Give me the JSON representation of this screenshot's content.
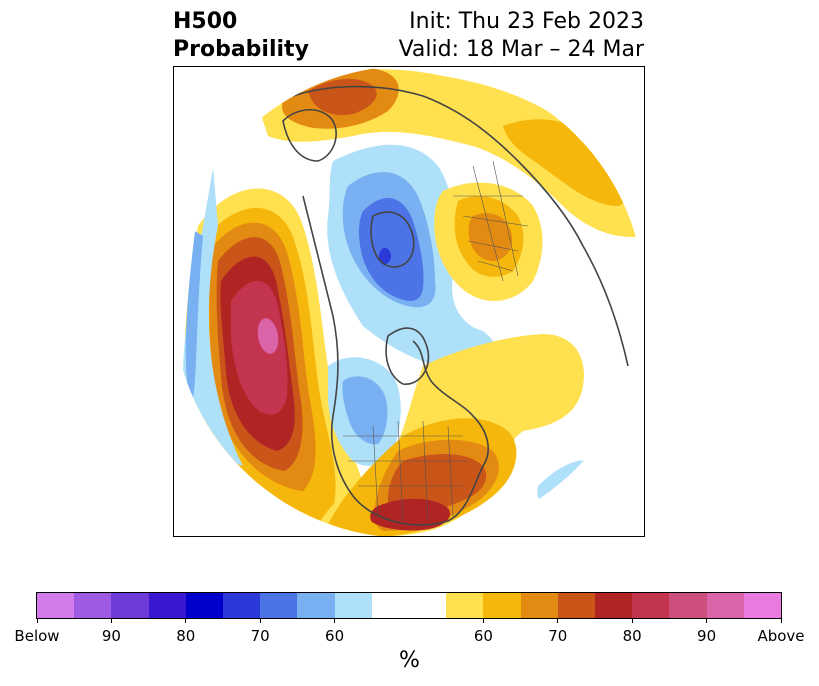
{
  "title": {
    "left_line1": "H500",
    "left_line2": "Probability",
    "right_line1": "Init: Thu 23 Feb 2023",
    "right_line2": "Valid: 18 Mar – 24 Mar"
  },
  "colorbar": {
    "colors": [
      "#d37bea",
      "#9e5ae2",
      "#6e3ad8",
      "#3a17d1",
      "#0000cc",
      "#2a39d8",
      "#4d74e6",
      "#79b0f1",
      "#aee0fa",
      "#ffffff",
      "#ffe04f",
      "#f5b70b",
      "#e38a12",
      "#c95519",
      "#b02424",
      "#c3344e",
      "#cc4f7e",
      "#db64a8",
      "#e87ae0"
    ],
    "labels": [
      "Below",
      "90",
      "80",
      "70",
      "60",
      "60",
      "70",
      "80",
      "90",
      "Above"
    ],
    "unit": "%"
  },
  "map": {
    "projection": "north-polar-stereographic",
    "fields": [
      {
        "name": "above-normal-core",
        "color": "#cc4f7e",
        "region": "Gulf of Alaska / NE Pacific"
      },
      {
        "name": "above-normal",
        "color": "#b02424",
        "region": "Southeastern United States"
      },
      {
        "name": "above-normal",
        "color": "#e38a12",
        "region": "Scandinavia / Barents Sea"
      },
      {
        "name": "above-normal",
        "color": "#e38a12",
        "region": "Western Siberia"
      },
      {
        "name": "below-normal",
        "color": "#4d74e6",
        "region": "Canadian Arctic Archipelago"
      },
      {
        "name": "below-normal",
        "color": "#aee0fa",
        "region": "Western / Central United States"
      }
    ]
  }
}
